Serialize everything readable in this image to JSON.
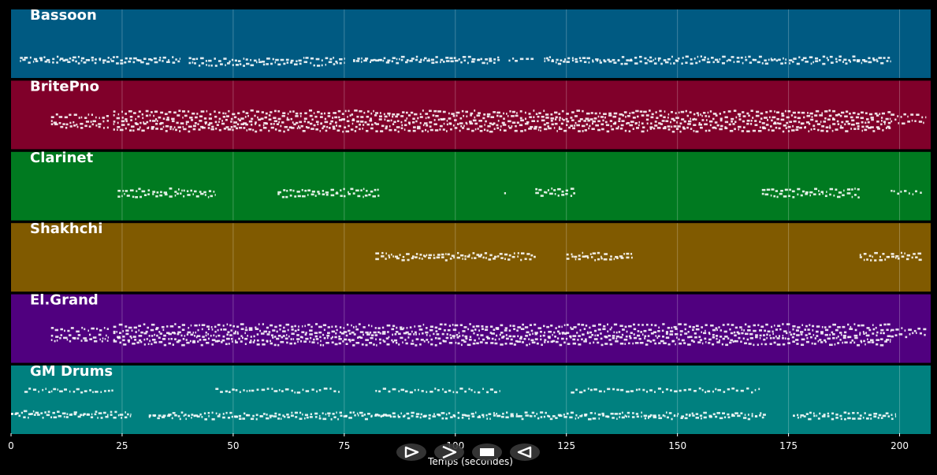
{
  "chart_data": {
    "type": "piano-roll",
    "xlabel": "Temps (secondes)",
    "xlim": [
      0,
      207
    ],
    "xticks": [
      0,
      25,
      50,
      75,
      100,
      125,
      150,
      175,
      200
    ],
    "grid": true,
    "background": "#000000",
    "tracks": [
      {
        "name": "Bassoon",
        "color": "#005a82",
        "segments": [
          {
            "start": 2,
            "end": 38,
            "levels": [
              0.3,
              0.25
            ]
          },
          {
            "start": 40,
            "end": 75,
            "levels": [
              0.28,
              0.22
            ]
          },
          {
            "start": 77,
            "end": 110,
            "levels": [
              0.3,
              0.25
            ]
          },
          {
            "start": 112,
            "end": 118,
            "levels": [
              0.27
            ]
          },
          {
            "start": 120,
            "end": 198,
            "levels": [
              0.3,
              0.25
            ]
          }
        ]
      },
      {
        "name": "BritePno",
        "color": "#80002a",
        "segments": [
          {
            "start": 9,
            "end": 22,
            "levels": [
              0.5,
              0.4,
              0.35
            ]
          },
          {
            "start": 23,
            "end": 198,
            "levels": [
              0.55,
              0.48,
              0.42,
              0.36,
              0.3
            ]
          },
          {
            "start": 198,
            "end": 206,
            "levels": [
              0.5,
              0.42
            ]
          }
        ]
      },
      {
        "name": "Clarinet",
        "color": "#007a20",
        "segments": [
          {
            "start": 24,
            "end": 46,
            "levels": [
              0.45,
              0.38
            ]
          },
          {
            "start": 60,
            "end": 83,
            "levels": [
              0.45,
              0.38
            ]
          },
          {
            "start": 111,
            "end": 111.4,
            "levels": [
              0.4
            ]
          },
          {
            "start": 118,
            "end": 127,
            "levels": [
              0.45,
              0.4
            ]
          },
          {
            "start": 169,
            "end": 191,
            "levels": [
              0.45,
              0.38
            ]
          },
          {
            "start": 198,
            "end": 205,
            "levels": [
              0.42
            ]
          }
        ]
      },
      {
        "name": "Shakhchi",
        "color": "#805a00",
        "segments": [
          {
            "start": 82,
            "end": 118,
            "levels": [
              0.55,
              0.5
            ]
          },
          {
            "start": 125,
            "end": 140,
            "levels": [
              0.55,
              0.5
            ]
          },
          {
            "start": 191,
            "end": 205,
            "levels": [
              0.55,
              0.5
            ]
          }
        ]
      },
      {
        "name": "El.Grand",
        "color": "#50007f",
        "segments": [
          {
            "start": 9,
            "end": 22,
            "levels": [
              0.5,
              0.4,
              0.35
            ]
          },
          {
            "start": 23,
            "end": 198,
            "levels": [
              0.55,
              0.48,
              0.42,
              0.36,
              0.3
            ]
          },
          {
            "start": 198,
            "end": 206,
            "levels": [
              0.5,
              0.42
            ]
          }
        ]
      },
      {
        "name": "GM Drums",
        "color": "#00807f",
        "segments": [
          {
            "start": 3,
            "end": 23,
            "levels": [
              0.65
            ]
          },
          {
            "start": 0,
            "end": 27,
            "levels": [
              0.32,
              0.28
            ]
          },
          {
            "start": 46,
            "end": 74,
            "levels": [
              0.65
            ]
          },
          {
            "start": 31,
            "end": 170,
            "levels": [
              0.3,
              0.26
            ]
          },
          {
            "start": 82,
            "end": 110,
            "levels": [
              0.65
            ]
          },
          {
            "start": 126,
            "end": 169,
            "levels": [
              0.65
            ]
          },
          {
            "start": 176,
            "end": 199,
            "levels": [
              0.3,
              0.26
            ]
          }
        ]
      }
    ]
  },
  "toolbar": {
    "icons": [
      "play-icon",
      "forward-icon",
      "stop-icon",
      "rewind-icon"
    ]
  }
}
